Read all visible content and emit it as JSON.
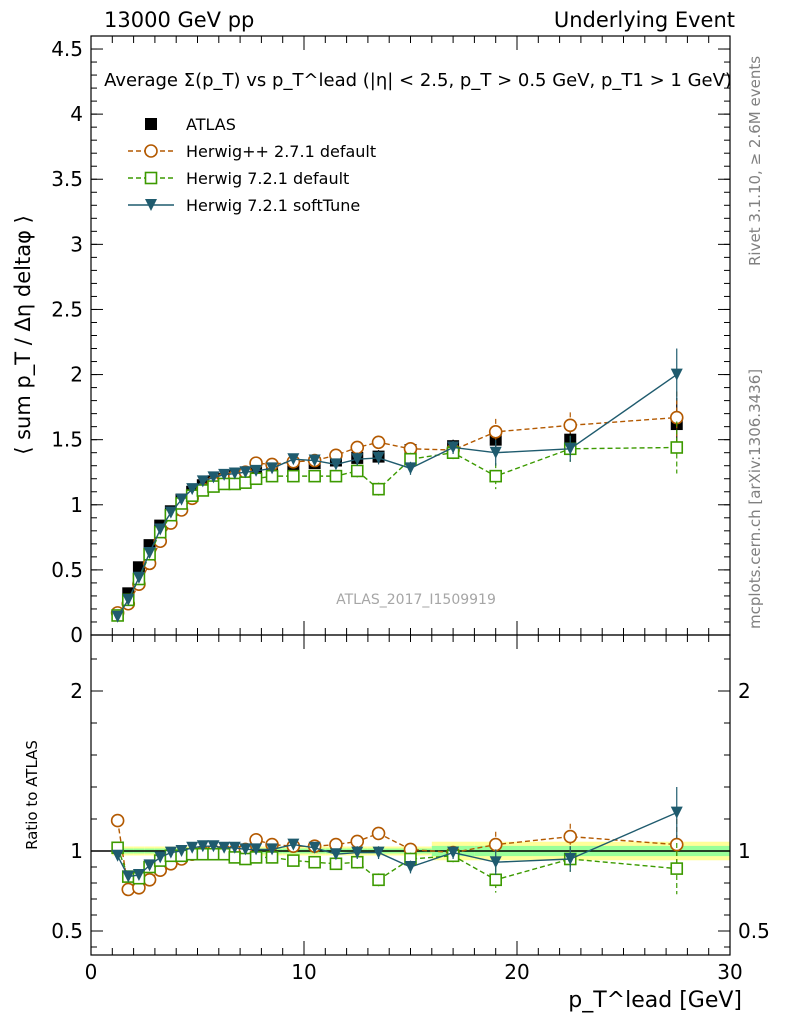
{
  "header": {
    "left": "13000 GeV pp",
    "right": "Underlying Event"
  },
  "side_labels": {
    "rivet": "Rivet 3.1.10, ≥ 2.6M events",
    "mcplots": "mcplots.cern.ch [arXiv:1306.3436]"
  },
  "watermark": "ATLAS_2017_I1509919",
  "chart_data": [
    {
      "type": "line",
      "title": "Average Σ(p_T) vs p_T^lead (|η| < 2.5, p_T > 0.5 GeV, p_T1 > 1 GeV)",
      "ylabel": "⟨ sum p_T / Δη deltaφ ⟩",
      "xlabel": "",
      "xlim": [
        0,
        30
      ],
      "ylim": [
        0,
        4.6
      ],
      "yticks": [
        0,
        0.5,
        1,
        1.5,
        2,
        2.5,
        3,
        3.5,
        4,
        4.5
      ],
      "ytick_labels": [
        "0",
        "0.5",
        "1",
        "1.5",
        "2",
        "2.5",
        "3",
        "3.5",
        "4",
        "4.5"
      ],
      "legend_position": "top-left",
      "series": [
        {
          "name": "ATLAS",
          "color": "#000000",
          "marker": "filled-square",
          "x": [
            1.25,
            1.75,
            2.25,
            2.75,
            3.25,
            3.75,
            4.25,
            4.75,
            5.25,
            5.75,
            6.25,
            6.75,
            7.25,
            7.75,
            8.5,
            9.5,
            10.5,
            11.5,
            12.5,
            13.5,
            15,
            17,
            19,
            22.5,
            27.5
          ],
          "y": [
            0.15,
            0.32,
            0.52,
            0.69,
            0.84,
            0.95,
            1.04,
            1.1,
            1.15,
            1.18,
            1.2,
            1.22,
            1.24,
            1.25,
            1.27,
            1.3,
            1.32,
            1.34,
            1.36,
            1.37,
            1.42,
            1.45,
            1.5,
            1.5,
            1.62
          ]
        },
        {
          "name": "Herwig++ 2.7.1 default",
          "color": "#b35900",
          "marker": "open-circle",
          "x": [
            1.25,
            1.75,
            2.25,
            2.75,
            3.25,
            3.75,
            4.25,
            4.75,
            5.25,
            5.75,
            6.25,
            6.75,
            7.25,
            7.75,
            8.5,
            9.5,
            10.5,
            11.5,
            12.5,
            13.5,
            15,
            17,
            19,
            22.5,
            27.5
          ],
          "y": [
            0.17,
            0.24,
            0.39,
            0.55,
            0.72,
            0.86,
            0.96,
            1.05,
            1.12,
            1.17,
            1.2,
            1.22,
            1.25,
            1.32,
            1.31,
            1.33,
            1.34,
            1.38,
            1.44,
            1.48,
            1.43,
            1.42,
            1.56,
            1.61,
            1.67
          ]
        },
        {
          "name": "Herwig 7.2.1 default",
          "color": "#3c9a00",
          "marker": "open-square",
          "x": [
            1.25,
            1.75,
            2.25,
            2.75,
            3.25,
            3.75,
            4.25,
            4.75,
            5.25,
            5.75,
            6.25,
            6.75,
            7.25,
            7.75,
            8.5,
            9.5,
            10.5,
            11.5,
            12.5,
            13.5,
            15,
            17,
            19,
            22.5,
            27.5
          ],
          "y": [
            0.15,
            0.27,
            0.43,
            0.62,
            0.79,
            0.92,
            1.01,
            1.07,
            1.11,
            1.14,
            1.16,
            1.16,
            1.17,
            1.2,
            1.22,
            1.22,
            1.22,
            1.22,
            1.26,
            1.12,
            1.35,
            1.4,
            1.22,
            1.43,
            1.44
          ]
        },
        {
          "name": "Herwig 7.2.1 softTune",
          "color": "#1f5b6e",
          "marker": "filled-triangle-down",
          "x": [
            1.25,
            1.75,
            2.25,
            2.75,
            3.25,
            3.75,
            4.25,
            4.75,
            5.25,
            5.75,
            6.25,
            6.75,
            7.25,
            7.75,
            8.5,
            9.5,
            10.5,
            11.5,
            12.5,
            13.5,
            15,
            17,
            19,
            22.5,
            27.5
          ],
          "y": [
            0.14,
            0.27,
            0.44,
            0.63,
            0.81,
            0.94,
            1.04,
            1.12,
            1.18,
            1.21,
            1.23,
            1.24,
            1.25,
            1.26,
            1.28,
            1.35,
            1.34,
            1.31,
            1.35,
            1.36,
            1.28,
            1.44,
            1.4,
            1.43,
            2.0
          ]
        }
      ]
    },
    {
      "type": "line",
      "title": "",
      "ylabel": "Ratio to ATLAS",
      "xlabel": "p_T^lead [GeV]",
      "xlim": [
        0,
        30
      ],
      "ylim": [
        0.35,
        2.35
      ],
      "xticks": [
        0,
        10,
        20,
        30
      ],
      "xtick_labels": [
        "0",
        "10",
        "20",
        "30"
      ],
      "yticks": [
        0.5,
        1,
        2
      ],
      "ytick_labels": [
        "0.5",
        "1",
        "2"
      ],
      "reference_line": 1,
      "series": [
        {
          "name": "Herwig++ 2.7.1 default",
          "color": "#b35900",
          "marker": "open-circle",
          "x": [
            1.25,
            1.75,
            2.25,
            2.75,
            3.25,
            3.75,
            4.25,
            4.75,
            5.25,
            5.75,
            6.25,
            6.75,
            7.25,
            7.75,
            8.5,
            9.5,
            10.5,
            11.5,
            12.5,
            13.5,
            15,
            17,
            19,
            22.5,
            27.5
          ],
          "y": [
            1.19,
            0.76,
            0.77,
            0.82,
            0.88,
            0.92,
            0.95,
            0.98,
            0.99,
            1.0,
            1.0,
            1.0,
            1.01,
            1.07,
            1.04,
            1.03,
            1.03,
            1.04,
            1.06,
            1.11,
            1.01,
            0.99,
            1.04,
            1.09,
            1.04
          ]
        },
        {
          "name": "Herwig 7.2.1 default",
          "color": "#3c9a00",
          "marker": "open-square",
          "x": [
            1.25,
            1.75,
            2.25,
            2.75,
            3.25,
            3.75,
            4.25,
            4.75,
            5.25,
            5.75,
            6.25,
            6.75,
            7.25,
            7.75,
            8.5,
            9.5,
            10.5,
            11.5,
            12.5,
            13.5,
            15,
            17,
            19,
            22.5,
            27.5
          ],
          "y": [
            1.02,
            0.84,
            0.83,
            0.9,
            0.94,
            0.97,
            0.97,
            0.98,
            0.98,
            0.98,
            0.98,
            0.96,
            0.95,
            0.96,
            0.96,
            0.94,
            0.93,
            0.92,
            0.93,
            0.82,
            0.95,
            0.97,
            0.82,
            0.95,
            0.89
          ]
        },
        {
          "name": "Herwig 7.2.1 softTune",
          "color": "#1f5b6e",
          "marker": "filled-triangle-down",
          "x": [
            1.25,
            1.75,
            2.25,
            2.75,
            3.25,
            3.75,
            4.25,
            4.75,
            5.25,
            5.75,
            6.25,
            6.75,
            7.25,
            7.75,
            8.5,
            9.5,
            10.5,
            11.5,
            12.5,
            13.5,
            15,
            17,
            19,
            22.5,
            27.5
          ],
          "y": [
            0.97,
            0.84,
            0.85,
            0.91,
            0.96,
            0.99,
            1.0,
            1.02,
            1.03,
            1.03,
            1.02,
            1.02,
            1.01,
            1.01,
            1.01,
            1.04,
            1.02,
            0.98,
            0.99,
            0.99,
            0.9,
            0.99,
            0.93,
            0.95,
            1.24
          ]
        }
      ]
    }
  ]
}
